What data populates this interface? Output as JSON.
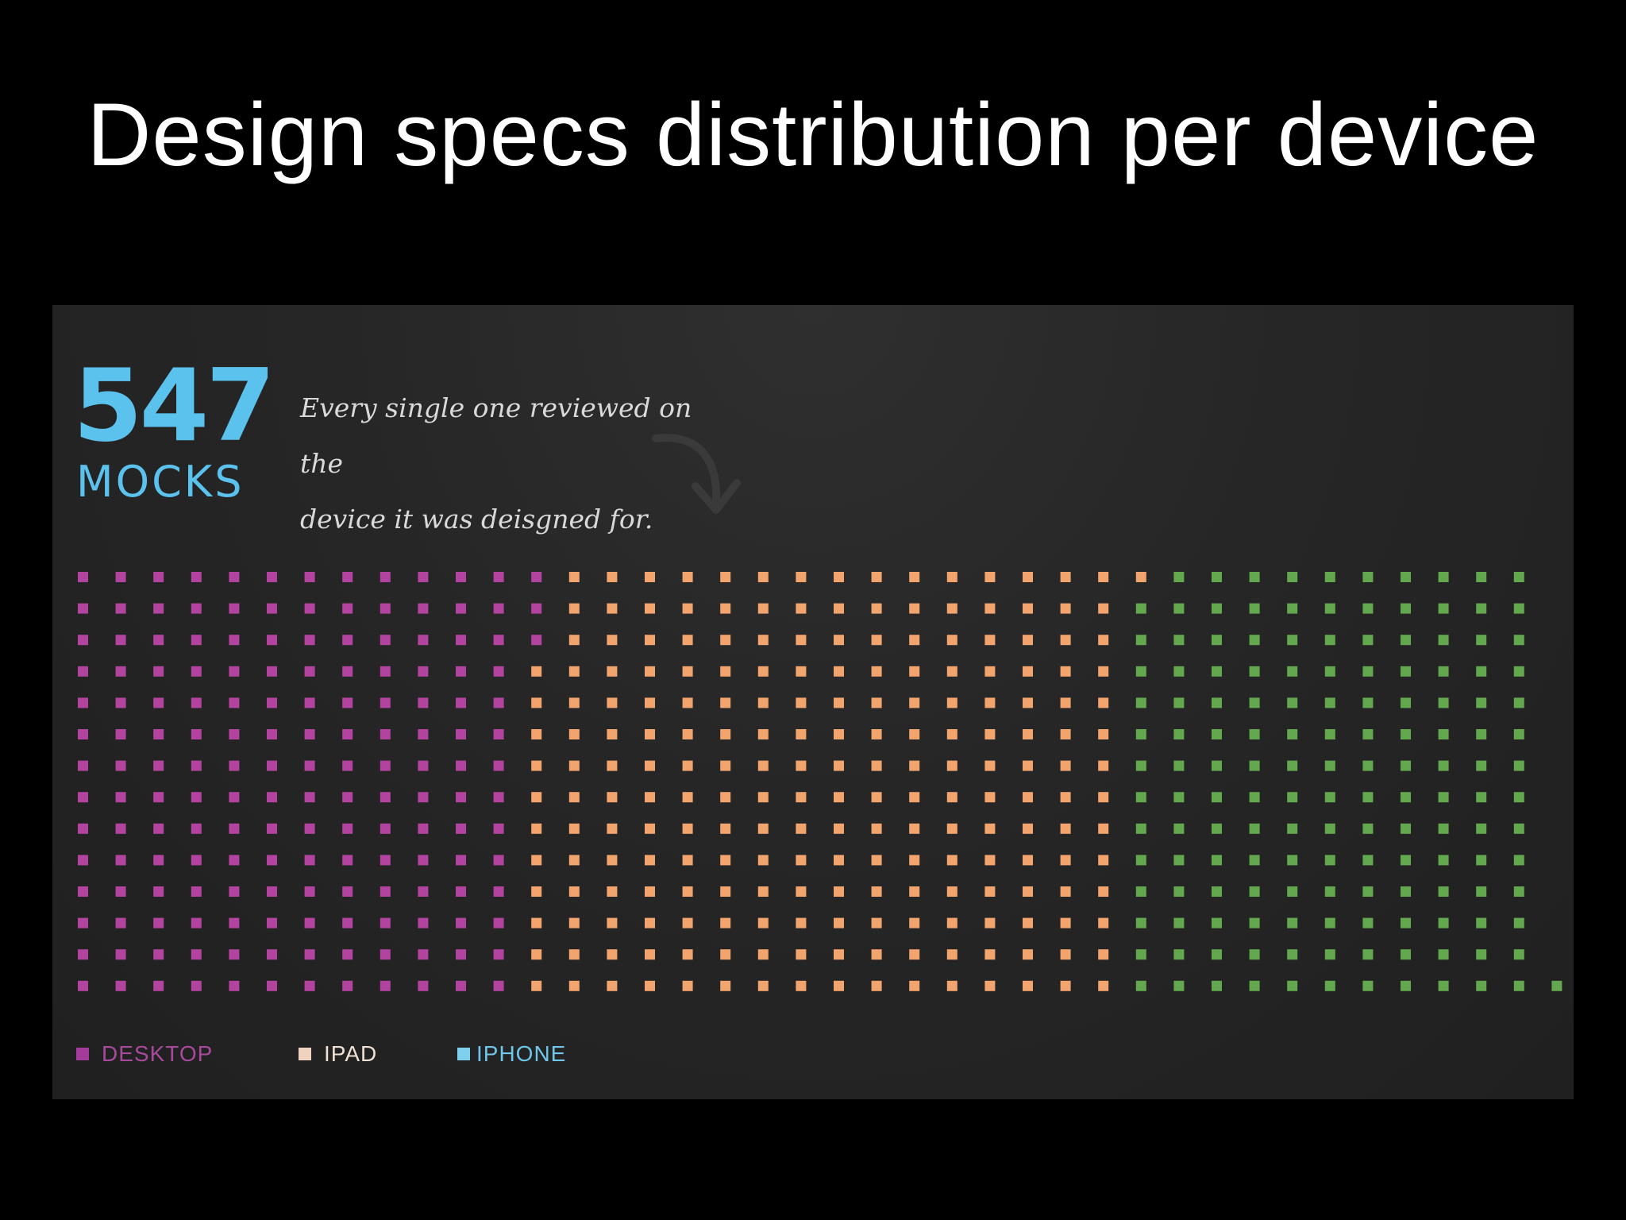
{
  "slide": {
    "title": "Design specs distribution per device"
  },
  "headline": {
    "number": "547",
    "label": "MOCKS",
    "color": "#5bc2ee"
  },
  "note": {
    "line1": "Every single one reviewed on the",
    "line2": "device it was deisgned for."
  },
  "legend": [
    {
      "label": "DESKTOP",
      "swatch": "#a43b9a",
      "text_color": "#a84a9c"
    },
    {
      "label": "IPAD",
      "swatch": "#efd3c0",
      "text_color": "#efe0d4"
    },
    {
      "label": "IPHONE",
      "swatch": "#7fd0ef",
      "text_color": "#6fc6ea"
    }
  ],
  "chart_data": {
    "type": "waffle",
    "total": 547,
    "unit": "MOCKS",
    "rows": 14,
    "columns": 40,
    "fill_order": "column-major, top to bottom, left to right",
    "series": [
      {
        "name": "DESKTOP",
        "count": 171,
        "color": "#b2449f"
      },
      {
        "name": "IPAD",
        "count": 222,
        "color": "#f2a46e"
      },
      {
        "name": "IPHONE",
        "count": 154,
        "color": "#63a84e"
      }
    ]
  }
}
